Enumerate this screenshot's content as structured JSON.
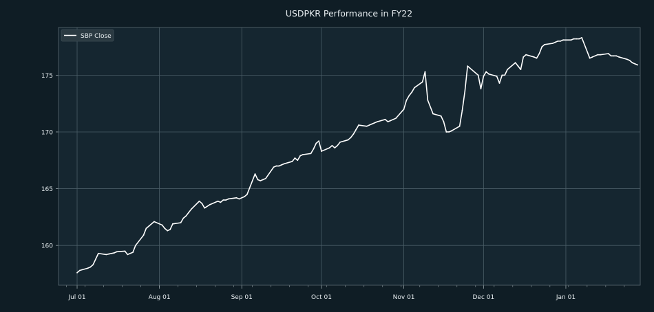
{
  "chart_data": {
    "type": "line",
    "title": "USDPKR Performance in FY22",
    "xlabel": "",
    "ylabel": "",
    "x_tick_labels": [
      "Jul 01",
      "Aug 01",
      "Sep 01",
      "Oct 01",
      "Nov 01",
      "Dec 01",
      "Jan 01"
    ],
    "x_tick_dates": [
      "2021-07-01",
      "2021-08-01",
      "2021-09-01",
      "2021-10-01",
      "2021-11-01",
      "2021-12-01",
      "2022-01-01"
    ],
    "xlim": [
      "2021-06-24",
      "2022-01-29"
    ],
    "y_ticks": [
      160,
      165,
      170,
      175
    ],
    "ylim": [
      156.5,
      179.2
    ],
    "grid": true,
    "legend_position": "top-left",
    "colors": {
      "background": "#0f1d25",
      "plot_background": "#152630",
      "line": "#ffffff",
      "grid": "#4a5d66",
      "text": "#e6ecef"
    },
    "series": [
      {
        "name": "SBP Close",
        "points": [
          [
            "2021-07-01",
            157.6
          ],
          [
            "2021-07-02",
            157.8
          ],
          [
            "2021-07-05",
            158.0
          ],
          [
            "2021-07-06",
            158.1
          ],
          [
            "2021-07-07",
            158.3
          ],
          [
            "2021-07-08",
            158.8
          ],
          [
            "2021-07-09",
            159.3
          ],
          [
            "2021-07-12",
            159.2
          ],
          [
            "2021-07-13",
            159.25
          ],
          [
            "2021-07-14",
            159.3
          ],
          [
            "2021-07-15",
            159.35
          ],
          [
            "2021-07-16",
            159.45
          ],
          [
            "2021-07-19",
            159.5
          ],
          [
            "2021-07-20",
            159.2
          ],
          [
            "2021-07-22",
            159.4
          ],
          [
            "2021-07-23",
            160.0
          ],
          [
            "2021-07-26",
            160.9
          ],
          [
            "2021-07-27",
            161.5
          ],
          [
            "2021-07-28",
            161.7
          ],
          [
            "2021-07-30",
            162.1
          ],
          [
            "2021-08-02",
            161.8
          ],
          [
            "2021-08-03",
            161.5
          ],
          [
            "2021-08-04",
            161.3
          ],
          [
            "2021-08-05",
            161.4
          ],
          [
            "2021-08-06",
            161.9
          ],
          [
            "2021-08-09",
            162.0
          ],
          [
            "2021-08-10",
            162.4
          ],
          [
            "2021-08-11",
            162.6
          ],
          [
            "2021-08-12",
            162.9
          ],
          [
            "2021-08-13",
            163.2
          ],
          [
            "2021-08-16",
            163.9
          ],
          [
            "2021-08-17",
            163.7
          ],
          [
            "2021-08-18",
            163.3
          ],
          [
            "2021-08-20",
            163.6
          ],
          [
            "2021-08-23",
            163.9
          ],
          [
            "2021-08-24",
            163.8
          ],
          [
            "2021-08-25",
            164.0
          ],
          [
            "2021-08-26",
            164.0
          ],
          [
            "2021-08-27",
            164.1
          ],
          [
            "2021-08-30",
            164.2
          ],
          [
            "2021-08-31",
            164.1
          ],
          [
            "2021-09-01",
            164.2
          ],
          [
            "2021-09-02",
            164.3
          ],
          [
            "2021-09-03",
            164.5
          ],
          [
            "2021-09-06",
            166.3
          ],
          [
            "2021-09-07",
            165.8
          ],
          [
            "2021-09-08",
            165.7
          ],
          [
            "2021-09-09",
            165.8
          ],
          [
            "2021-09-10",
            165.9
          ],
          [
            "2021-09-13",
            166.9
          ],
          [
            "2021-09-14",
            167.0
          ],
          [
            "2021-09-15",
            167.0
          ],
          [
            "2021-09-16",
            167.1
          ],
          [
            "2021-09-17",
            167.2
          ],
          [
            "2021-09-20",
            167.4
          ],
          [
            "2021-09-21",
            167.7
          ],
          [
            "2021-09-22",
            167.5
          ],
          [
            "2021-09-23",
            167.9
          ],
          [
            "2021-09-24",
            168.0
          ],
          [
            "2021-09-27",
            168.1
          ],
          [
            "2021-09-28",
            168.5
          ],
          [
            "2021-09-29",
            169.0
          ],
          [
            "2021-09-30",
            169.2
          ],
          [
            "2021-10-01",
            168.3
          ],
          [
            "2021-10-04",
            168.6
          ],
          [
            "2021-10-05",
            168.8
          ],
          [
            "2021-10-06",
            168.6
          ],
          [
            "2021-10-07",
            168.8
          ],
          [
            "2021-10-08",
            169.1
          ],
          [
            "2021-10-11",
            169.3
          ],
          [
            "2021-10-12",
            169.5
          ],
          [
            "2021-10-13",
            169.8
          ],
          [
            "2021-10-14",
            170.2
          ],
          [
            "2021-10-15",
            170.6
          ],
          [
            "2021-10-18",
            170.5
          ],
          [
            "2021-10-19",
            170.6
          ],
          [
            "2021-10-20",
            170.7
          ],
          [
            "2021-10-21",
            170.8
          ],
          [
            "2021-10-22",
            170.9
          ],
          [
            "2021-10-25",
            171.1
          ],
          [
            "2021-10-26",
            170.9
          ],
          [
            "2021-10-27",
            171.0
          ],
          [
            "2021-10-28",
            171.1
          ],
          [
            "2021-10-29",
            171.2
          ],
          [
            "2021-11-01",
            172.0
          ],
          [
            "2021-11-02",
            172.8
          ],
          [
            "2021-11-03",
            173.2
          ],
          [
            "2021-11-04",
            173.5
          ],
          [
            "2021-11-05",
            173.9
          ],
          [
            "2021-11-08",
            174.4
          ],
          [
            "2021-11-09",
            175.3
          ],
          [
            "2021-11-10",
            172.8
          ],
          [
            "2021-11-12",
            171.6
          ],
          [
            "2021-11-15",
            171.4
          ],
          [
            "2021-11-16",
            170.9
          ],
          [
            "2021-11-17",
            170.0
          ],
          [
            "2021-11-18",
            170.0
          ],
          [
            "2021-11-19",
            170.1
          ],
          [
            "2021-11-22",
            170.5
          ],
          [
            "2021-11-23",
            171.9
          ],
          [
            "2021-11-24",
            173.6
          ],
          [
            "2021-11-25",
            175.8
          ],
          [
            "2021-11-26",
            175.6
          ],
          [
            "2021-11-29",
            175.0
          ],
          [
            "2021-11-30",
            173.8
          ],
          [
            "2021-12-01",
            174.9
          ],
          [
            "2021-12-02",
            175.3
          ],
          [
            "2021-12-03",
            175.1
          ],
          [
            "2021-12-06",
            174.9
          ],
          [
            "2021-12-07",
            174.3
          ],
          [
            "2021-12-08",
            175.0
          ],
          [
            "2021-12-09",
            175.0
          ],
          [
            "2021-12-10",
            175.5
          ],
          [
            "2021-12-13",
            176.1
          ],
          [
            "2021-12-14",
            175.8
          ],
          [
            "2021-12-15",
            175.5
          ],
          [
            "2021-12-16",
            176.6
          ],
          [
            "2021-12-17",
            176.8
          ],
          [
            "2021-12-20",
            176.6
          ],
          [
            "2021-12-21",
            176.5
          ],
          [
            "2021-12-22",
            176.9
          ],
          [
            "2021-12-23",
            177.5
          ],
          [
            "2021-12-24",
            177.7
          ],
          [
            "2021-12-27",
            177.8
          ],
          [
            "2021-12-28",
            177.9
          ],
          [
            "2021-12-29",
            178.0
          ],
          [
            "2021-12-30",
            178.0
          ],
          [
            "2021-12-31",
            178.1
          ],
          [
            "2022-01-03",
            178.1
          ],
          [
            "2022-01-04",
            178.2
          ],
          [
            "2022-01-05",
            178.2
          ],
          [
            "2022-01-06",
            178.2
          ],
          [
            "2022-01-07",
            178.3
          ],
          [
            "2022-01-10",
            176.5
          ],
          [
            "2022-01-11",
            176.6
          ],
          [
            "2022-01-12",
            176.7
          ],
          [
            "2022-01-13",
            176.8
          ],
          [
            "2022-01-14",
            176.8
          ],
          [
            "2022-01-17",
            176.9
          ],
          [
            "2022-01-18",
            176.7
          ],
          [
            "2022-01-19",
            176.7
          ],
          [
            "2022-01-20",
            176.7
          ],
          [
            "2022-01-21",
            176.6
          ],
          [
            "2022-01-24",
            176.4
          ],
          [
            "2022-01-25",
            176.3
          ],
          [
            "2022-01-26",
            176.1
          ],
          [
            "2022-01-27",
            176.0
          ],
          [
            "2022-01-28",
            175.9
          ]
        ]
      }
    ]
  }
}
